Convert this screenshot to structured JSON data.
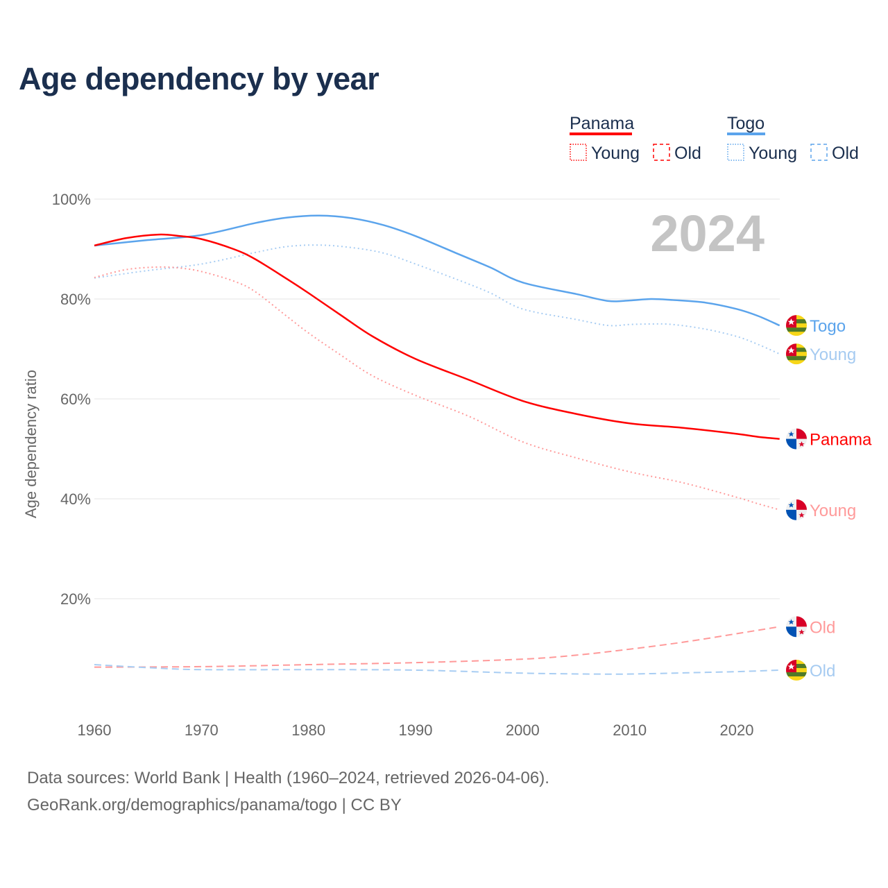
{
  "title": "Age dependency by year",
  "year_watermark": "2024",
  "legend": {
    "groups": [
      {
        "country": "Panama",
        "color": "#ff0000",
        "items": [
          "Young",
          "Old"
        ]
      },
      {
        "country": "Togo",
        "color": "#5ba4ec",
        "items": [
          "Young",
          "Old"
        ]
      }
    ]
  },
  "footer": {
    "line1": "Data sources: World Bank | Health (1960–2024, retrieved 2026-04-06).",
    "line2": "GeoRank.org/demographics/panama/togo | CC BY"
  },
  "chart_data": {
    "type": "line",
    "title": "Age dependency by year",
    "xlabel": "",
    "ylabel": "Age dependency ratio",
    "xlim": [
      1960,
      2024
    ],
    "ylim": [
      0,
      100
    ],
    "x_ticks": [
      "1960",
      "1970",
      "1980",
      "1990",
      "2000",
      "2010",
      "2020"
    ],
    "y_ticks": [
      "20%",
      "40%",
      "60%",
      "80%",
      "100%"
    ],
    "grid": true,
    "series": [
      {
        "name": "Togo",
        "label": "Togo",
        "country": "togo",
        "color": "#5ba4ec",
        "label_color": "#5ba4ec",
        "style": "solid",
        "x": [
          1960,
          1965,
          1970,
          1975,
          1978,
          1981,
          1984,
          1987,
          1990,
          1994,
          1997,
          2000,
          2005,
          2008,
          2010,
          2012,
          2014,
          2017,
          2020,
          2022,
          2024
        ],
        "y": [
          90.7,
          91.8,
          92.8,
          95.2,
          96.3,
          96.7,
          96.2,
          94.8,
          92.6,
          89,
          86.3,
          83.3,
          81,
          79.6,
          79.7,
          80,
          79.8,
          79.3,
          78,
          76.6,
          74.7
        ]
      },
      {
        "name": "Togo Young",
        "label": "Young",
        "country": "togo",
        "color": "#a8cdf3",
        "label_color": "#a6cbf1",
        "style": "dotted",
        "x": [
          1960,
          1965,
          1970,
          1975,
          1978,
          1981,
          1984,
          1987,
          1990,
          1994,
          1997,
          2000,
          2005,
          2008,
          2010,
          2012,
          2014,
          2017,
          2020,
          2022,
          2024
        ],
        "y": [
          84.2,
          85.7,
          87,
          89.3,
          90.5,
          90.8,
          90.3,
          89.2,
          87,
          83.8,
          81.2,
          78,
          75.9,
          74.7,
          74.9,
          75,
          74.9,
          74,
          72.5,
          70.9,
          69
        ]
      },
      {
        "name": "Panama",
        "label": "Panama",
        "country": "panama",
        "color": "#ff0000",
        "label_color": "#ff0000",
        "style": "solid",
        "x": [
          1960,
          1963,
          1966,
          1968,
          1970,
          1973,
          1975,
          1978,
          1980,
          1983,
          1986,
          1990,
          1995,
          2000,
          2005,
          2010,
          2015,
          2020,
          2022,
          2024
        ],
        "y": [
          90.7,
          92.2,
          92.9,
          92.6,
          92,
          90,
          88,
          84,
          81.2,
          76.8,
          72.5,
          68,
          63.8,
          59.6,
          57,
          55.1,
          54.2,
          53,
          52.4,
          52
        ]
      },
      {
        "name": "Panama Young",
        "label": "Young",
        "country": "panama",
        "color": "#ff9999",
        "label_color": "#ff9a9a",
        "style": "dotted",
        "x": [
          1960,
          1963,
          1966,
          1968,
          1970,
          1973,
          1975,
          1978,
          1980,
          1983,
          1986,
          1990,
          1995,
          2000,
          2005,
          2010,
          2015,
          2020,
          2022,
          2024
        ],
        "y": [
          84.3,
          85.9,
          86.4,
          86.2,
          85.5,
          83.6,
          81.5,
          76.5,
          73.2,
          68.8,
          64.6,
          60.7,
          56.5,
          51.4,
          48.2,
          45.4,
          43.2,
          40.3,
          39,
          37.8
        ]
      },
      {
        "name": "Panama Old",
        "label": "Old",
        "country": "panama",
        "color": "#ff9999",
        "label_color": "#ff9a9a",
        "style": "dashed",
        "x": [
          1960,
          1970,
          1980,
          1990,
          2000,
          2005,
          2010,
          2015,
          2020,
          2024
        ],
        "y": [
          6.3,
          6.4,
          6.8,
          7.2,
          7.9,
          8.7,
          9.9,
          11.3,
          13,
          14.4
        ]
      },
      {
        "name": "Togo Old",
        "label": "Old",
        "country": "togo",
        "color": "#a8cdf3",
        "label_color": "#a6cbf1",
        "style": "dashed",
        "x": [
          1960,
          1965,
          1970,
          1980,
          1990,
          2000,
          2008,
          2012,
          2016,
          2020,
          2024
        ],
        "y": [
          6.8,
          6.2,
          5.8,
          5.8,
          5.7,
          5.1,
          4.9,
          5.0,
          5.2,
          5.4,
          5.7
        ]
      }
    ]
  }
}
